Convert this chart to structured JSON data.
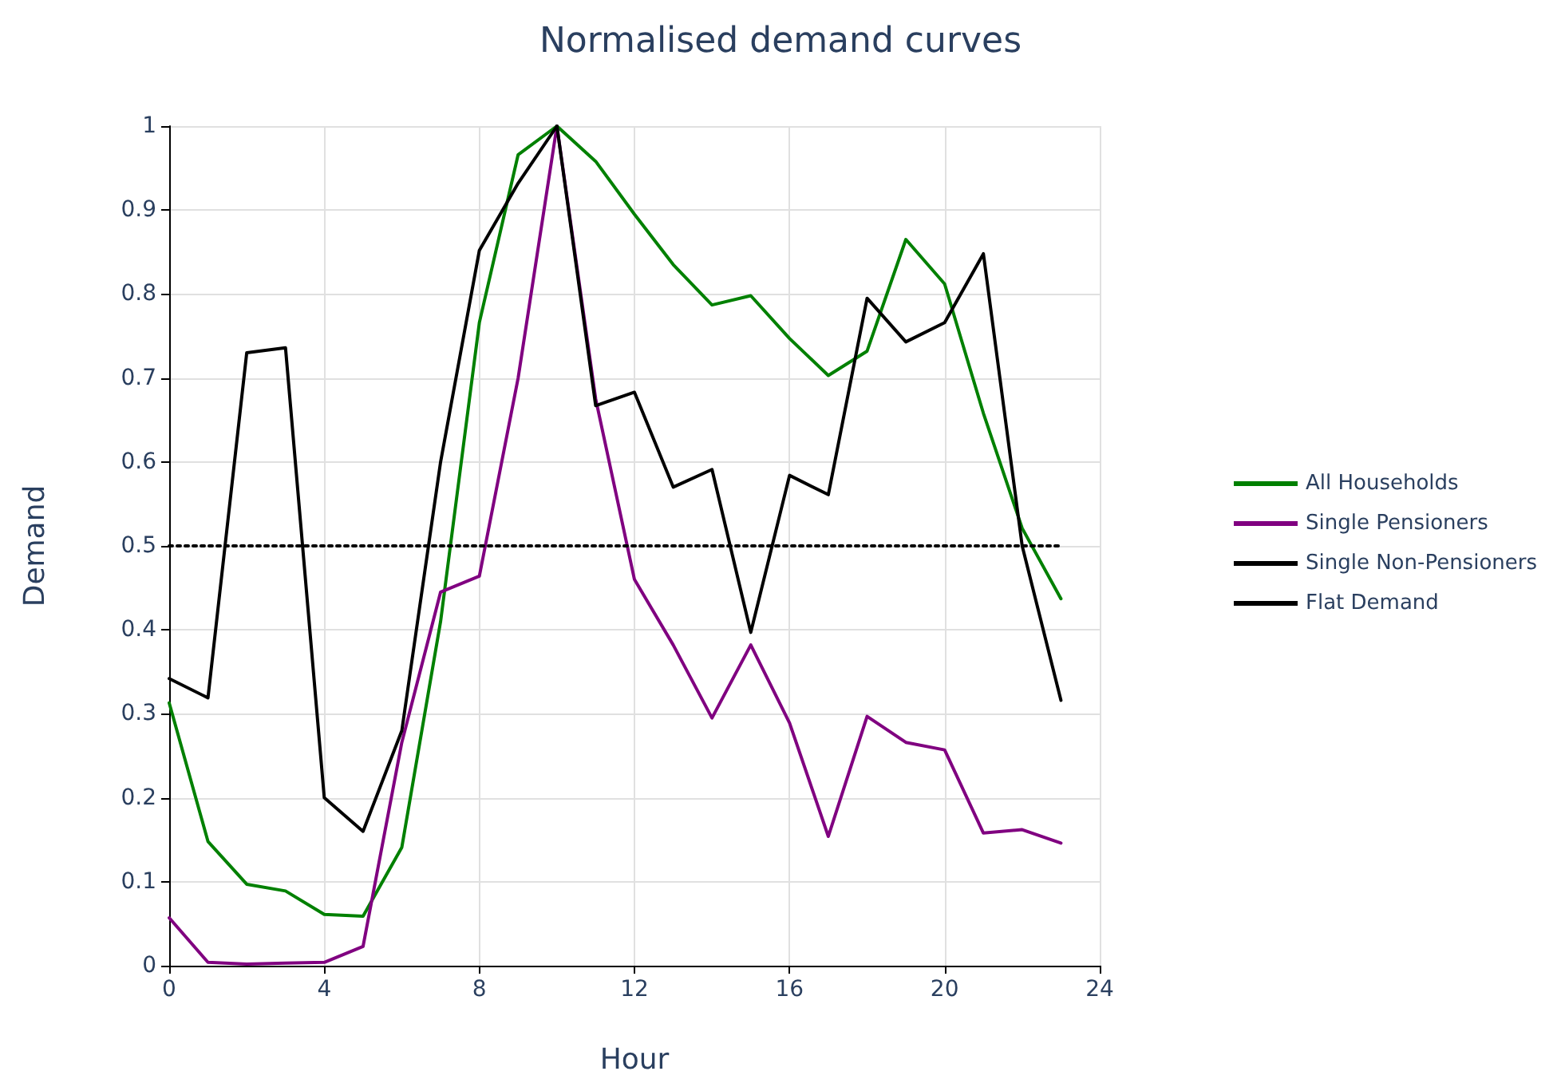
{
  "chart_data": {
    "type": "line",
    "title": "Normalised demand curves",
    "xlabel": "Hour",
    "ylabel": "Demand",
    "x": [
      0,
      1,
      2,
      3,
      4,
      5,
      6,
      7,
      8,
      9,
      10,
      11,
      12,
      13,
      14,
      15,
      16,
      17,
      18,
      19,
      20,
      21,
      22,
      23
    ],
    "series": [
      {
        "name": "All Households",
        "color": "#008000",
        "values": [
          0.313,
          0.148,
          0.097,
          0.089,
          0.061,
          0.059,
          0.141,
          0.41,
          0.766,
          0.966,
          1,
          0.958,
          0.895,
          0.835,
          0.787,
          0.798,
          0.747,
          0.703,
          0.732,
          0.865,
          0.812,
          0.658,
          0.521,
          0.437
        ]
      },
      {
        "name": "Single Pensioners",
        "color": "#800080",
        "values": [
          0.057,
          0.004,
          0.002,
          0.003,
          0.004,
          0.023,
          0.266,
          0.445,
          0.464,
          0.7,
          1,
          0.675,
          0.46,
          0.382,
          0.295,
          0.382,
          0.289,
          0.154,
          0.297,
          0.266,
          0.257,
          0.158,
          0.162,
          0.146
        ]
      },
      {
        "name": "Single Non-Pensioners",
        "color": "#000000",
        "values": [
          0.342,
          0.319,
          0.73,
          0.736,
          0.2,
          0.16,
          0.28,
          0.6,
          0.852,
          0.932,
          1,
          0.667,
          0.683,
          0.57,
          0.591,
          0.397,
          0.584,
          0.561,
          0.795,
          0.743,
          0.766,
          0.848,
          0.5,
          0.316
        ]
      },
      {
        "name": "Flat Demand",
        "color": "#000000",
        "line_style": "dotted",
        "x": [
          0,
          23
        ],
        "values": [
          0.5,
          0.5
        ]
      }
    ],
    "xlim": [
      0,
      24
    ],
    "xticks": [
      0,
      4,
      8,
      12,
      16,
      20,
      24
    ],
    "ylim": [
      0,
      1
    ],
    "yticks": [
      0,
      0.1,
      0.2,
      0.3,
      0.4,
      0.5,
      0.6,
      0.7,
      0.8,
      0.9,
      1
    ],
    "grid": true,
    "legend": "right",
    "marker": "none",
    "line_style": "solid"
  }
}
